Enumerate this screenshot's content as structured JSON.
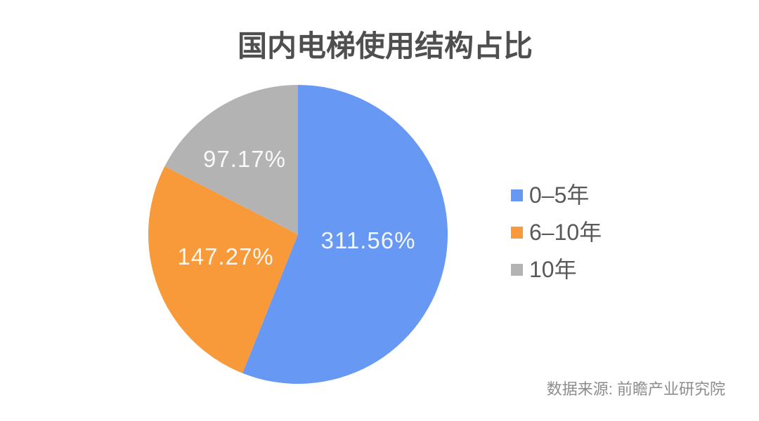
{
  "title": "国内电梯使用结构占比",
  "source_note": "数据来源: 前瞻产业研究院",
  "colors": {
    "background": "#FFFFFF",
    "title_text": "#4F4F4F",
    "legend_text": "#595959",
    "source_text": "#8C8C8C",
    "slice_label_text": "#FFFFFF",
    "series_blue": "#6798F4",
    "series_orange": "#F8993A",
    "series_gray": "#B3B3B3"
  },
  "chart_data": {
    "type": "pie",
    "title": "国内电梯使用结构占比",
    "start_angle_deg": 0,
    "direction": "clockwise",
    "legend_position": "right",
    "slices": [
      {
        "label": "0–5年",
        "value": 311.56,
        "display_value": "311.56%",
        "color": "#6798F4"
      },
      {
        "label": "6–10年",
        "value": 147.27,
        "display_value": "147.27%",
        "color": "#F8993A"
      },
      {
        "label": "10年",
        "value": 97.17,
        "display_value": "97.17%",
        "color": "#B3B3B3"
      }
    ]
  }
}
